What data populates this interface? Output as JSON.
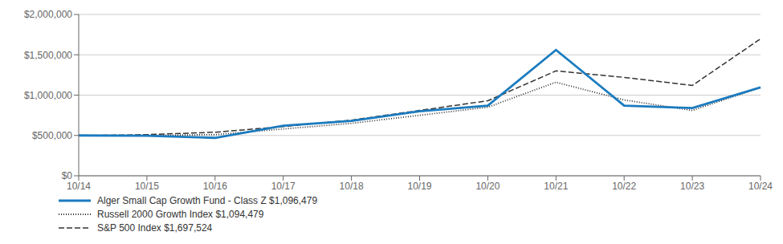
{
  "chart_data": {
    "type": "line",
    "categories": [
      "10/14",
      "10/15",
      "10/16",
      "10/17",
      "10/18",
      "10/19",
      "10/20",
      "10/21",
      "10/22",
      "10/23",
      "10/24"
    ],
    "series": [
      {
        "name": "Alger Small Cap Growth Fund - Class Z $1,096,479",
        "color": "#1b7bbf",
        "line_style": "solid",
        "values": [
          500000,
          497000,
          470000,
          620000,
          680000,
          800000,
          870000,
          1560000,
          870000,
          840000,
          1096479
        ]
      },
      {
        "name": "Russell 2000 Growth Index $1,094,479",
        "color": "#333333",
        "line_style": "dotted",
        "values": [
          497000,
          500000,
          510000,
          580000,
          650000,
          750000,
          850000,
          1160000,
          940000,
          810000,
          1094479
        ]
      },
      {
        "name": "S&P 500 Index $1,697,524",
        "color": "#333333",
        "line_style": "dashed",
        "values": [
          497000,
          510000,
          540000,
          610000,
          690000,
          810000,
          930000,
          1300000,
          1220000,
          1120000,
          1697524
        ]
      }
    ],
    "ylim": [
      0,
      2000000
    ],
    "yticks": [
      {
        "value": 0,
        "label": "$0"
      },
      {
        "value": 500000,
        "label": "$500,000"
      },
      {
        "value": 1000000,
        "label": "$1,000,000"
      },
      {
        "value": 1500000,
        "label": "$1,500,000"
      },
      {
        "value": 2000000,
        "label": "$2,000,000"
      }
    ],
    "grid": true,
    "legend": "bottom-left"
  }
}
